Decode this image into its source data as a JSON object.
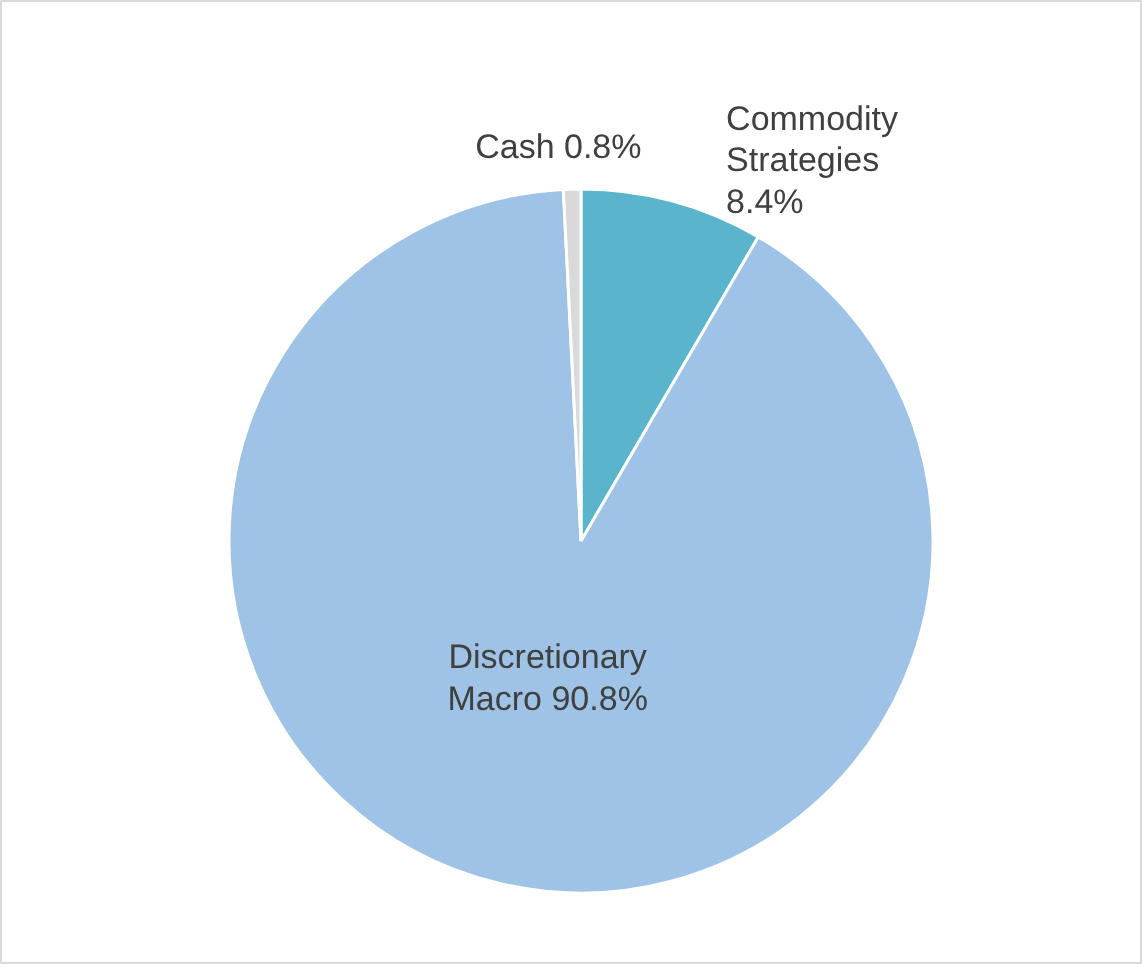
{
  "chart_data": {
    "type": "pie",
    "categories": [
      "Commodity Strategies",
      "Discretionary Macro",
      "Cash"
    ],
    "values": [
      8.4,
      90.8,
      0.8
    ],
    "colors": [
      "#5ab4cc",
      "#9fc3e6",
      "#d9d9d9"
    ],
    "value_labels": [
      "8.4%",
      "90.8%",
      "0.8%"
    ]
  }
}
